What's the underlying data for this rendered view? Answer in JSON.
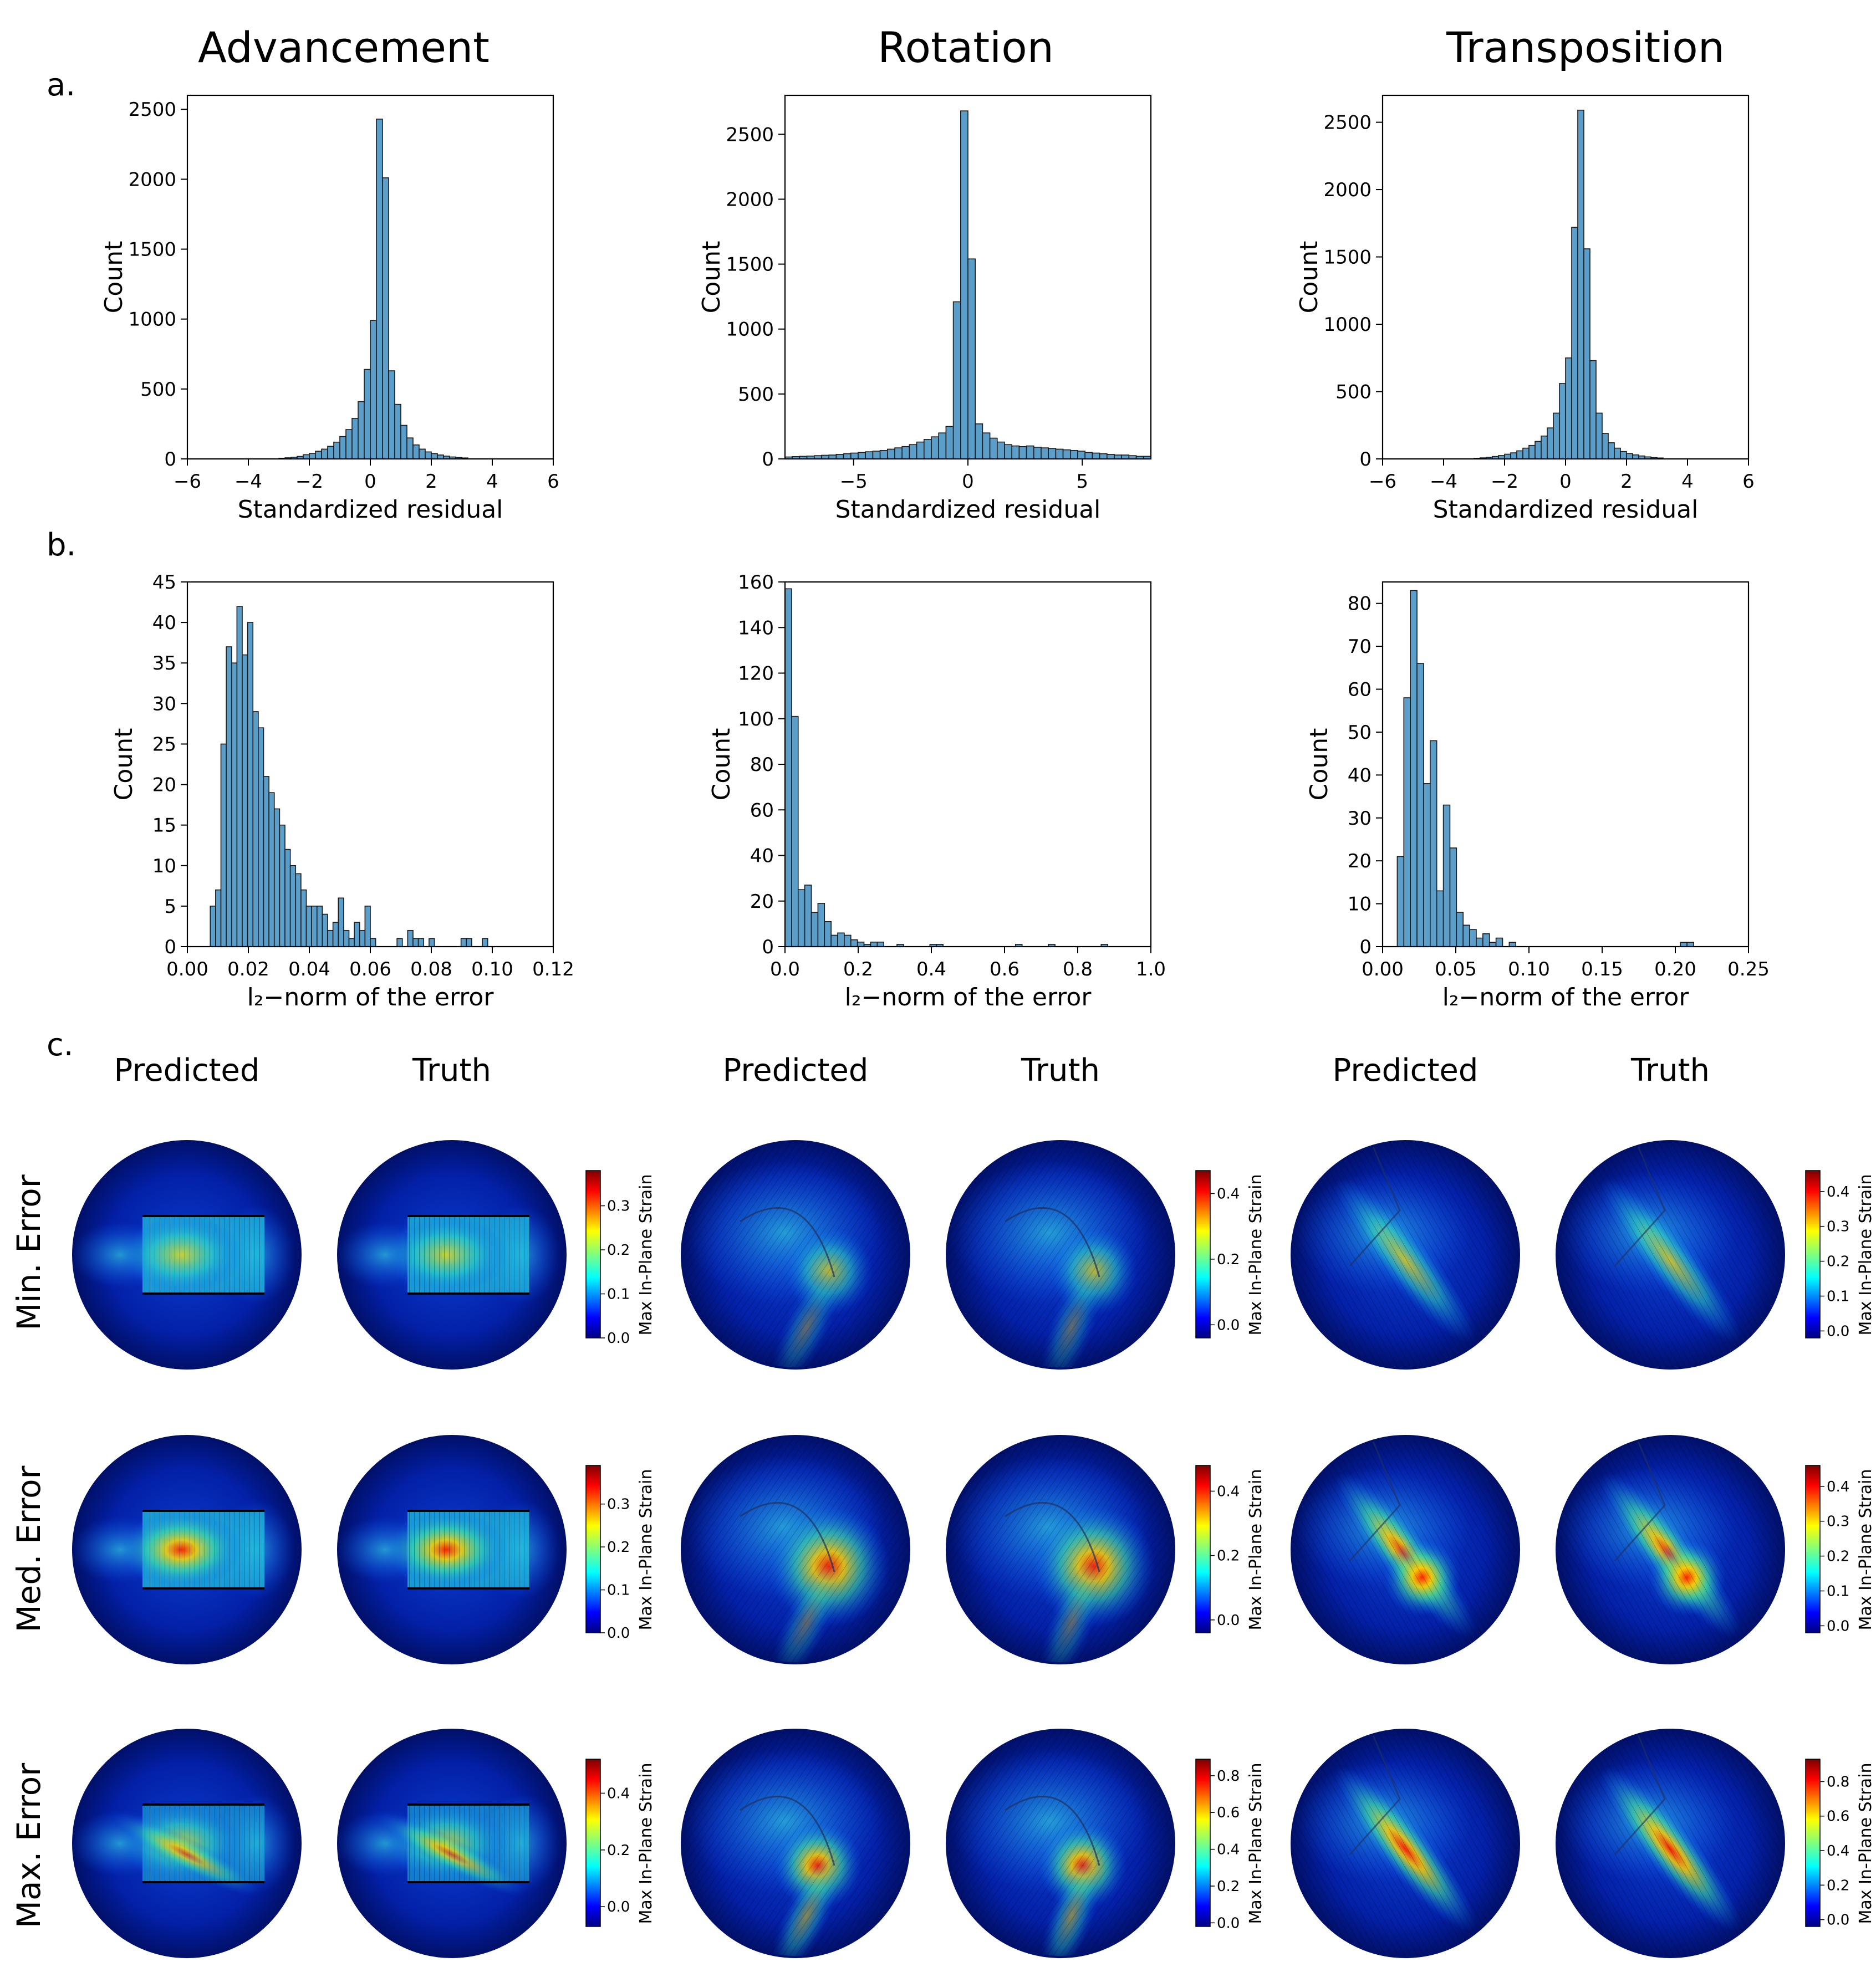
{
  "figure": {
    "panel_labels": [
      "a.",
      "b.",
      "c."
    ],
    "column_titles": [
      "Advancement",
      "Rotation",
      "Transposition"
    ],
    "field_labels": {
      "predicted": "Predicted",
      "truth": "Truth"
    },
    "row_labels": [
      "Min. Error",
      "Med. Error",
      "Max. Error"
    ],
    "colorbar_label": "Max In-Plane Strain"
  },
  "colors": {
    "bar_fill": "#5a9ec9",
    "bar_edge": "#1a1a1a",
    "field_low": "#00007f",
    "field_high": "#ff0000"
  },
  "chart_data": [
    {
      "panel": "a",
      "column": "Advancement",
      "type": "bar",
      "xlabel": "Standardized residual",
      "ylabel": "Count",
      "title": "",
      "xlim": [
        -6,
        6
      ],
      "ylim": [
        0,
        2600
      ],
      "xticks": [
        -6,
        -4,
        -2,
        0,
        2,
        4,
        6
      ],
      "xtick_labels": [
        "−6",
        "−4",
        "−2",
        "0",
        "2",
        "4",
        "6"
      ],
      "yticks": [
        0,
        500,
        1000,
        1500,
        2000,
        2500
      ],
      "ytick_labels": [
        "0",
        "500",
        "1000",
        "1500",
        "2000",
        "2500"
      ],
      "bin_start": -3.0,
      "bin_width": 0.2,
      "values": [
        5,
        8,
        12,
        18,
        30,
        40,
        55,
        70,
        90,
        120,
        160,
        210,
        290,
        410,
        640,
        990,
        2430,
        2010,
        630,
        390,
        240,
        150,
        100,
        70,
        50,
        38,
        28,
        20,
        14,
        10,
        7
      ]
    },
    {
      "panel": "a",
      "column": "Rotation",
      "type": "bar",
      "xlabel": "Standardized residual",
      "ylabel": "Count",
      "title": "",
      "xlim": [
        -8,
        8
      ],
      "ylim": [
        0,
        2800
      ],
      "xticks": [
        -5,
        0,
        5
      ],
      "xtick_labels": [
        "−5",
        "0",
        "5"
      ],
      "yticks": [
        0,
        500,
        1000,
        1500,
        2000,
        2500
      ],
      "ytick_labels": [
        "0",
        "500",
        "1000",
        "1500",
        "2000",
        "2500"
      ],
      "bin_start": -8.0,
      "bin_width": 0.32,
      "values": [
        15,
        18,
        20,
        22,
        25,
        28,
        30,
        35,
        40,
        45,
        50,
        55,
        60,
        65,
        75,
        85,
        95,
        110,
        130,
        150,
        170,
        200,
        250,
        1210,
        2680,
        1540,
        270,
        200,
        160,
        130,
        110,
        100,
        95,
        100,
        90,
        85,
        80,
        75,
        70,
        65,
        60,
        50,
        45,
        40,
        35,
        30,
        30,
        25,
        20,
        20
      ]
    },
    {
      "panel": "a",
      "column": "Transposition",
      "type": "bar",
      "xlabel": "Standardized residual",
      "ylabel": "Count",
      "title": "",
      "xlim": [
        -6,
        6
      ],
      "ylim": [
        0,
        2700
      ],
      "xticks": [
        -6,
        -4,
        -2,
        0,
        2,
        4,
        6
      ],
      "xtick_labels": [
        "−6",
        "−4",
        "−2",
        "0",
        "2",
        "4",
        "6"
      ],
      "yticks": [
        0,
        500,
        1000,
        1500,
        2000,
        2500
      ],
      "ytick_labels": [
        "0",
        "500",
        "1000",
        "1500",
        "2000",
        "2500"
      ],
      "bin_start": -3.0,
      "bin_width": 0.2,
      "values": [
        5,
        8,
        12,
        18,
        25,
        35,
        45,
        60,
        80,
        100,
        130,
        170,
        230,
        340,
        560,
        750,
        1720,
        2590,
        1560,
        730,
        340,
        190,
        120,
        80,
        55,
        40,
        30,
        22,
        15,
        10,
        7
      ]
    },
    {
      "panel": "b",
      "column": "Advancement",
      "type": "bar",
      "xlabel": "l₂−norm of the error",
      "ylabel": "Count",
      "title": "",
      "xlim": [
        0.0,
        0.12
      ],
      "ylim": [
        0,
        45
      ],
      "xticks": [
        0.0,
        0.02,
        0.04,
        0.06,
        0.08,
        0.1,
        0.12
      ],
      "xtick_labels": [
        "0.00",
        "0.02",
        "0.04",
        "0.06",
        "0.08",
        "0.10",
        "0.12"
      ],
      "yticks": [
        0,
        5,
        10,
        15,
        20,
        25,
        30,
        35,
        40,
        45
      ],
      "ytick_labels": [
        "0",
        "5",
        "10",
        "15",
        "20",
        "25",
        "30",
        "35",
        "40",
        "45"
      ],
      "bin_start": 0.0075,
      "bin_width": 0.00175,
      "values": [
        5,
        7,
        25,
        37,
        35,
        42,
        36,
        40,
        29,
        27,
        21,
        19,
        17,
        15,
        12,
        10,
        9,
        7,
        5,
        5,
        5,
        4,
        2,
        3,
        6,
        2,
        1,
        3,
        2,
        5,
        1,
        0,
        0,
        0,
        0,
        1,
        0,
        2,
        1,
        1,
        0,
        1,
        0,
        0,
        0,
        0,
        0,
        1,
        1,
        0,
        0,
        1
      ]
    },
    {
      "panel": "b",
      "column": "Rotation",
      "type": "bar",
      "xlabel": "l₂−norm of the error",
      "ylabel": "Count",
      "title": "",
      "xlim": [
        0.0,
        1.0
      ],
      "ylim": [
        0,
        160
      ],
      "xticks": [
        0.0,
        0.2,
        0.4,
        0.6,
        0.8,
        1.0
      ],
      "xtick_labels": [
        "0.0",
        "0.2",
        "0.4",
        "0.6",
        "0.8",
        "1.0"
      ],
      "yticks": [
        0,
        20,
        40,
        60,
        80,
        100,
        120,
        140,
        160
      ],
      "ytick_labels": [
        "0",
        "20",
        "40",
        "60",
        "80",
        "100",
        "120",
        "140",
        "160"
      ],
      "bin_start": 0.0,
      "bin_width": 0.018,
      "values": [
        157,
        101,
        25,
        27,
        15,
        19,
        11,
        5,
        6,
        5,
        3,
        2,
        1,
        2,
        2,
        0,
        0,
        1,
        0,
        0,
        0,
        0,
        1,
        1,
        0,
        0,
        0,
        0,
        0,
        0,
        0,
        0,
        0,
        0,
        0,
        1,
        0,
        0,
        0,
        0,
        1,
        0,
        0,
        0,
        0,
        0,
        0,
        0,
        1
      ]
    },
    {
      "panel": "b",
      "column": "Transposition",
      "type": "bar",
      "xlabel": "l₂−norm of the error",
      "ylabel": "Count",
      "title": "",
      "xlim": [
        0.0,
        0.25
      ],
      "ylim": [
        0,
        85
      ],
      "xticks": [
        0.0,
        0.05,
        0.1,
        0.15,
        0.2,
        0.25
      ],
      "xtick_labels": [
        "0.00",
        "0.05",
        "0.10",
        "0.15",
        "0.20",
        "0.25"
      ],
      "yticks": [
        0,
        10,
        20,
        30,
        40,
        50,
        60,
        70,
        80
      ],
      "ytick_labels": [
        "0",
        "10",
        "20",
        "30",
        "40",
        "50",
        "60",
        "70",
        "80"
      ],
      "bin_start": 0.01,
      "bin_width": 0.0045,
      "values": [
        21,
        58,
        83,
        66,
        38,
        48,
        13,
        33,
        23,
        8,
        5,
        4,
        2,
        3,
        1,
        2,
        0,
        1,
        0,
        0,
        0,
        0,
        0,
        0,
        0,
        0,
        0,
        0,
        0,
        0,
        0,
        0,
        0,
        0,
        0,
        0,
        0,
        0,
        0,
        0,
        0,
        0,
        0,
        1,
        1
      ]
    }
  ],
  "colorbars": [
    {
      "row": "Min. Error",
      "column": "Advancement",
      "ticks": [
        "0.0",
        "0.1",
        "0.2",
        "0.3"
      ],
      "tick_values": [
        0.0,
        0.1,
        0.2,
        0.3
      ],
      "range": [
        0.0,
        0.38
      ]
    },
    {
      "row": "Min. Error",
      "column": "Rotation",
      "ticks": [
        "0.0",
        "0.2",
        "0.4"
      ],
      "tick_values": [
        0.0,
        0.2,
        0.4
      ],
      "range": [
        -0.04,
        0.47
      ]
    },
    {
      "row": "Min. Error",
      "column": "Transposition",
      "ticks": [
        "0.0",
        "0.1",
        "0.2",
        "0.3",
        "0.4"
      ],
      "tick_values": [
        0.0,
        0.1,
        0.2,
        0.3,
        0.4
      ],
      "range": [
        -0.02,
        0.46
      ]
    },
    {
      "row": "Med. Error",
      "column": "Advancement",
      "ticks": [
        "0.0",
        "0.1",
        "0.2",
        "0.3"
      ],
      "tick_values": [
        0.0,
        0.1,
        0.2,
        0.3
      ],
      "range": [
        0.0,
        0.39
      ]
    },
    {
      "row": "Med. Error",
      "column": "Rotation",
      "ticks": [
        "0.0",
        "0.2",
        "0.4"
      ],
      "tick_values": [
        0.0,
        0.2,
        0.4
      ],
      "range": [
        -0.04,
        0.48
      ]
    },
    {
      "row": "Med. Error",
      "column": "Transposition",
      "ticks": [
        "0.0",
        "0.1",
        "0.2",
        "0.3",
        "0.4"
      ],
      "tick_values": [
        0.0,
        0.1,
        0.2,
        0.3,
        0.4
      ],
      "range": [
        -0.02,
        0.46
      ]
    },
    {
      "row": "Max. Error",
      "column": "Advancement",
      "ticks": [
        "0.0",
        "0.2",
        "0.4"
      ],
      "tick_values": [
        0.0,
        0.2,
        0.4
      ],
      "range": [
        -0.07,
        0.52
      ]
    },
    {
      "row": "Max. Error",
      "column": "Rotation",
      "ticks": [
        "0.0",
        "0.2",
        "0.4",
        "0.6",
        "0.8"
      ],
      "tick_values": [
        0.0,
        0.2,
        0.4,
        0.6,
        0.8
      ],
      "range": [
        -0.02,
        0.89
      ]
    },
    {
      "row": "Max. Error",
      "column": "Transposition",
      "ticks": [
        "0.0",
        "0.2",
        "0.4",
        "0.6",
        "0.8"
      ],
      "tick_values": [
        0.0,
        0.2,
        0.4,
        0.6,
        0.8
      ],
      "range": [
        -0.04,
        0.93
      ]
    }
  ]
}
